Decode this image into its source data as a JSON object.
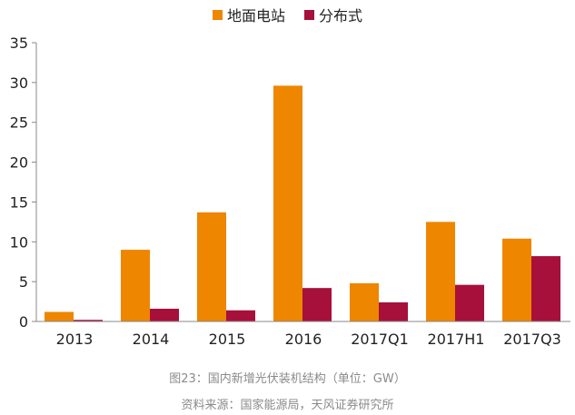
{
  "chart_data": {
    "type": "bar",
    "categories": [
      "2013",
      "2014",
      "2015",
      "2016",
      "2017Q1",
      "2017H1",
      "2017Q3"
    ],
    "series": [
      {
        "name": "地面电站",
        "values": [
          1.2,
          9.0,
          13.7,
          29.6,
          4.8,
          12.5,
          10.4
        ],
        "color": "#EE8600"
      },
      {
        "name": "分布式",
        "values": [
          0.2,
          1.6,
          1.4,
          4.2,
          2.4,
          4.6,
          8.2
        ],
        "color": "#A6103A"
      }
    ],
    "ylim": [
      0,
      35
    ],
    "yticks": [
      0,
      5,
      10,
      15,
      20,
      25,
      30,
      35
    ],
    "grid": false,
    "legend_position": "top-center"
  },
  "caption": {
    "figure_title": "图23：国内新增光伏装机结构（单位：GW）",
    "source": "资料来源：国家能源局，天风证券研究所"
  }
}
